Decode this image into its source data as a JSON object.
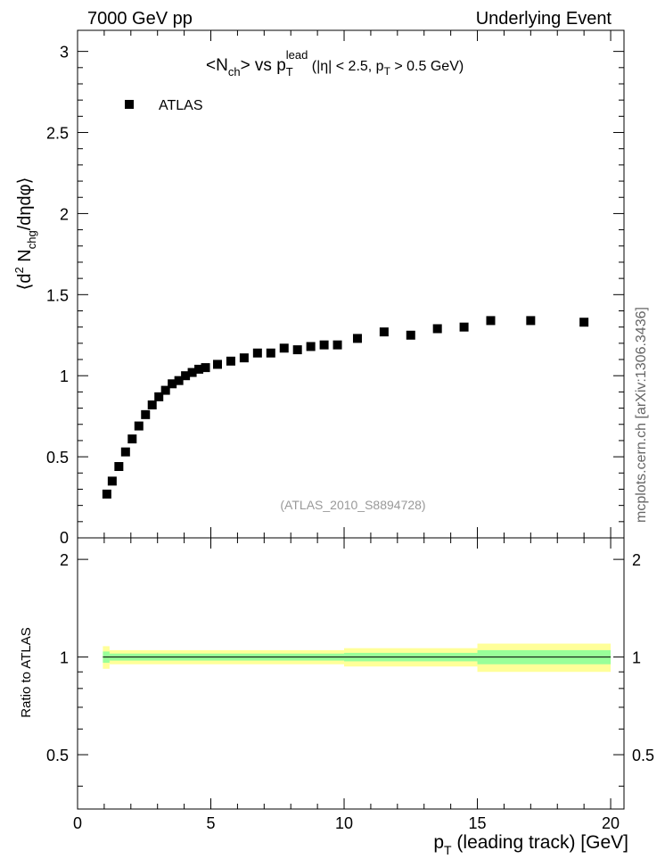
{
  "header": {
    "left": "7000 GeV pp",
    "right": "Underlying Event"
  },
  "side_label": "mcplots.cern.ch [arXiv:1306.3436]",
  "chart_data": [
    {
      "type": "scatter",
      "panel": "main",
      "title_parts": {
        "p1": "<N",
        "p1_sub": "ch",
        "p2": "> vs p",
        "p2_sub": "T",
        "p2_sup": "lead",
        "p3": " (|η| < 2.5, p",
        "p3_sub": "T",
        "p4": " > 0.5 GeV)"
      },
      "ylabel_parts": {
        "a": "⟨d",
        "a_sup": "2",
        "b": " N",
        "b_sub": "chg",
        "c": "/dηdφ⟩"
      },
      "xlim": [
        0,
        20.5
      ],
      "ylim": [
        0,
        3.13
      ],
      "y_ticks": [
        {
          "value": 0.5,
          "label": "0.5"
        },
        {
          "value": 1,
          "label": "1"
        },
        {
          "value": 1.5,
          "label": "1.5"
        },
        {
          "value": 2,
          "label": "2"
        },
        {
          "value": 2.5,
          "label": "2.5"
        },
        {
          "value": 3,
          "label": "3"
        }
      ],
      "legend": {
        "label": "ATLAS",
        "position": "top-left"
      },
      "watermark": "(ATLAS_2010_S8894728)",
      "series": [
        {
          "name": "ATLAS",
          "marker": "square",
          "color": "#000000",
          "x": [
            1.1,
            1.3,
            1.55,
            1.8,
            2.05,
            2.3,
            2.55,
            2.8,
            3.05,
            3.3,
            3.55,
            3.8,
            4.05,
            4.3,
            4.55,
            4.8,
            5.25,
            5.75,
            6.25,
            6.75,
            7.25,
            7.75,
            8.25,
            8.75,
            9.25,
            9.75,
            10.5,
            11.5,
            12.5,
            13.5,
            14.5,
            15.5,
            17.0,
            19.0
          ],
          "y": [
            0.27,
            0.35,
            0.44,
            0.53,
            0.61,
            0.69,
            0.76,
            0.82,
            0.87,
            0.91,
            0.95,
            0.97,
            1.0,
            1.02,
            1.04,
            1.05,
            1.07,
            1.09,
            1.11,
            1.14,
            1.14,
            1.17,
            1.16,
            1.18,
            1.19,
            1.19,
            1.23,
            1.27,
            1.25,
            1.29,
            1.3,
            1.34,
            1.34,
            1.33
          ]
        }
      ]
    },
    {
      "type": "area",
      "panel": "ratio",
      "ylabel": "Ratio to ATLAS",
      "xlabel_parts": {
        "a": "p",
        "a_sub": "T",
        "b": " (leading track) [GeV]"
      },
      "xlim": [
        0,
        20.5
      ],
      "ylim": [
        0.34,
        2.33
      ],
      "x_ticks": [
        {
          "value": 0,
          "label": "0"
        },
        {
          "value": 5,
          "label": "5"
        },
        {
          "value": 10,
          "label": "10"
        },
        {
          "value": 15,
          "label": "15"
        },
        {
          "value": 20,
          "label": "20"
        }
      ],
      "y_ticks": [
        {
          "value": 0.5,
          "label": "0.5"
        },
        {
          "value": 1,
          "label": "1"
        },
        {
          "value": 2,
          "label": "2"
        }
      ],
      "reference_line": 1,
      "bands": [
        {
          "name": "total uncertainty",
          "color": "#ffff99",
          "segments": [
            {
              "x0": 0.95,
              "x1": 1.2,
              "lo": 0.92,
              "hi": 1.08
            },
            {
              "x0": 1.2,
              "x1": 10.0,
              "lo": 0.95,
              "hi": 1.05
            },
            {
              "x0": 10.0,
              "x1": 15.0,
              "lo": 0.935,
              "hi": 1.065
            },
            {
              "x0": 15.0,
              "x1": 20.0,
              "lo": 0.9,
              "hi": 1.1
            }
          ]
        },
        {
          "name": "statistical uncertainty",
          "color": "#99ff99",
          "segments": [
            {
              "x0": 0.95,
              "x1": 1.2,
              "lo": 0.96,
              "hi": 1.04
            },
            {
              "x0": 1.2,
              "x1": 10.0,
              "lo": 0.975,
              "hi": 1.025
            },
            {
              "x0": 10.0,
              "x1": 15.0,
              "lo": 0.97,
              "hi": 1.03
            },
            {
              "x0": 15.0,
              "x1": 20.0,
              "lo": 0.95,
              "hi": 1.05
            }
          ]
        }
      ]
    }
  ]
}
